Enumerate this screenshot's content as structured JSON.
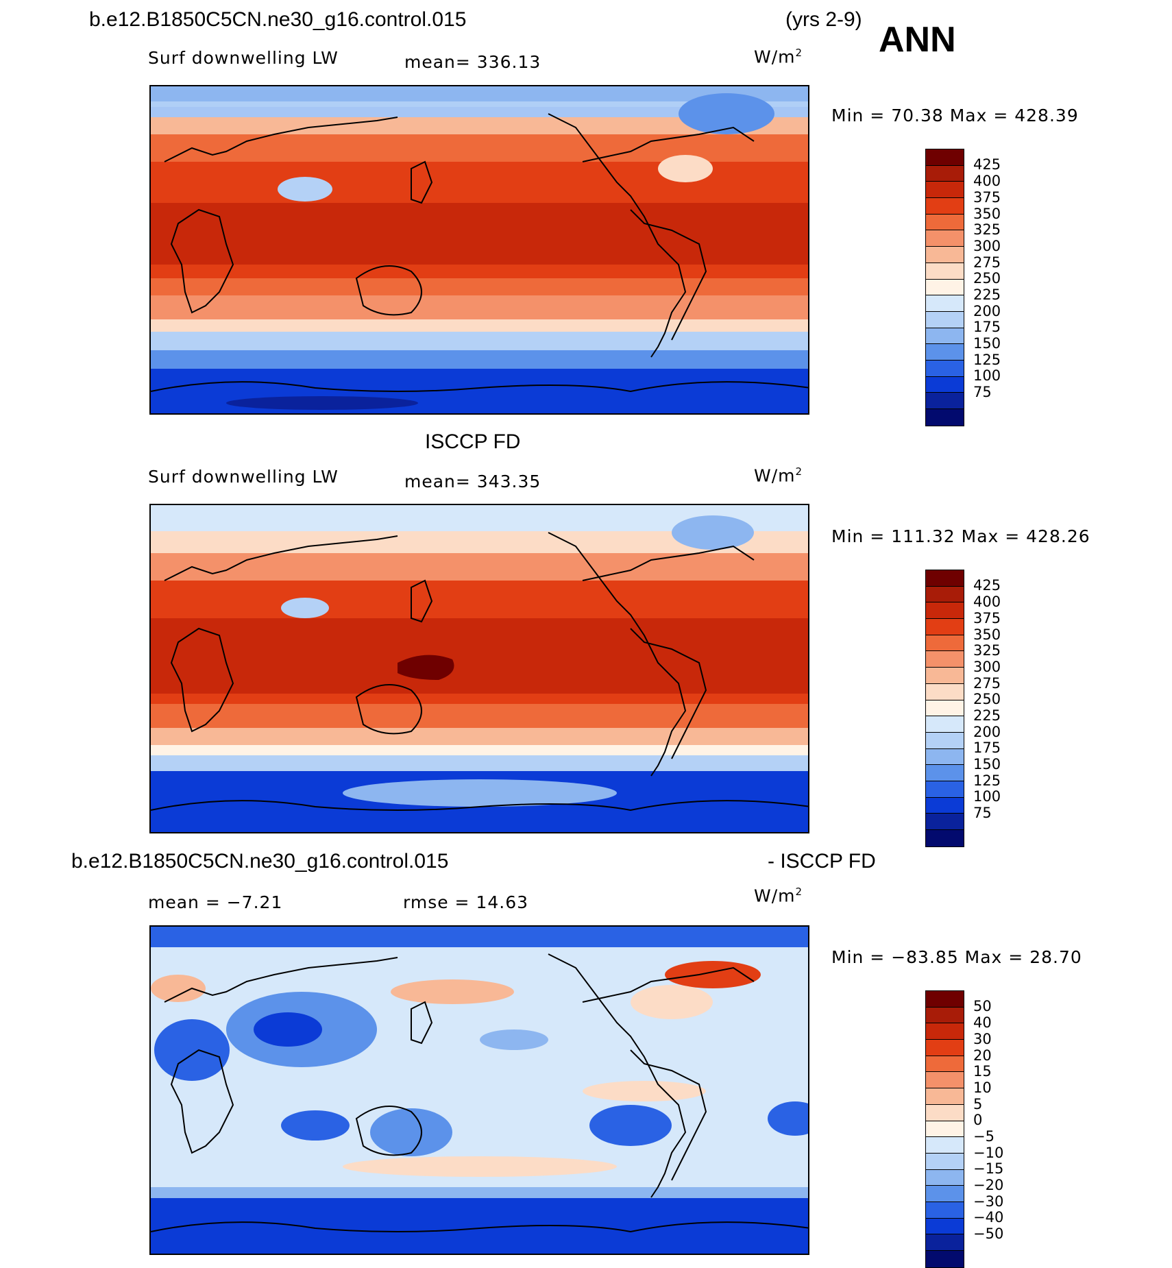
{
  "header": {
    "case_name": "b.e12.B1850C5CN.ne30_g16.control.015",
    "years": "(yrs 2-9)",
    "season": "ANN"
  },
  "panels": [
    {
      "id": "model",
      "variable": "Surf downwelling LW",
      "mean_text": "mean=  336.13",
      "units": "W/m",
      "units_exp": "2",
      "minmax": "Min =   70.38  Max = 428.39",
      "colorbar_labels": [
        "425",
        "400",
        "375",
        "350",
        "325",
        "300",
        "275",
        "250",
        "225",
        "200",
        "175",
        "150",
        "125",
        "100",
        "75"
      ]
    },
    {
      "id": "obs",
      "title": "ISCCP FD",
      "variable": "Surf downwelling LW",
      "mean_text": "mean=  343.35",
      "units": "W/m",
      "units_exp": "2",
      "minmax": "Min = 111.32  Max = 428.26",
      "colorbar_labels": [
        "425",
        "400",
        "375",
        "350",
        "325",
        "300",
        "275",
        "250",
        "225",
        "200",
        "175",
        "150",
        "125",
        "100",
        "75"
      ]
    },
    {
      "id": "diff",
      "title_left": "b.e12.B1850C5CN.ne30_g16.control.015",
      "title_right": "- ISCCP FD",
      "mean_text": "mean =   −7.21",
      "rmse_text": "rmse =   14.63",
      "units": "W/m",
      "units_exp": "2",
      "minmax": "Min = −83.85  Max =   28.70",
      "colorbar_labels": [
        "50",
        "40",
        "30",
        "20",
        "15",
        "10",
        "5",
        "0",
        "−5",
        "−10",
        "−15",
        "−20",
        "−30",
        "−40",
        "−50"
      ]
    }
  ],
  "colors": {
    "scale": [
      "#6f0000",
      "#a81c08",
      "#c8280a",
      "#e23e14",
      "#ee6a3a",
      "#f4916a",
      "#f8b896",
      "#fcdcc6",
      "#fff3e6",
      "#d6e8fa",
      "#b4d1f6",
      "#8db6f0",
      "#5c92ea",
      "#2a62e4",
      "#0b3bd6",
      "#0a229c",
      "#020a6e"
    ]
  }
}
